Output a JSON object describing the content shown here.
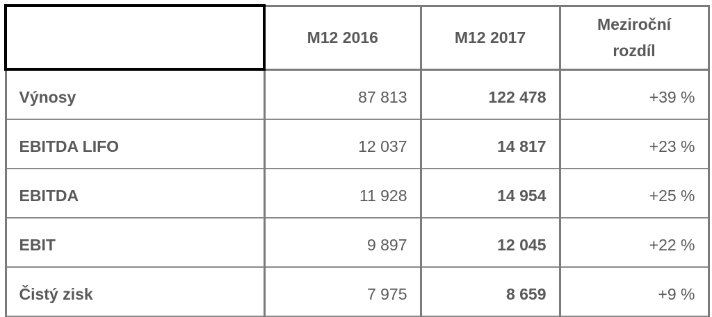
{
  "table": {
    "headers": [
      "",
      "M12 2016",
      "M12 2017",
      "Meziroční rozdíl"
    ],
    "header_diff_lines": [
      "Meziroční",
      "rozdíl"
    ],
    "rows": [
      {
        "label": "Výnosy",
        "m12_2016": "87 813",
        "m12_2017": "122 478",
        "diff": "+39 %"
      },
      {
        "label": "EBITDA LIFO",
        "m12_2016": "12 037",
        "m12_2017": "14 817",
        "diff": "+23 %"
      },
      {
        "label": "EBITDA",
        "m12_2016": "11 928",
        "m12_2017": "14 954",
        "diff": "+25 %"
      },
      {
        "label": "EBIT",
        "m12_2016": "9 897",
        "m12_2017": "12 045",
        "diff": "+22 %"
      },
      {
        "label": "Čistý zisk",
        "m12_2016": "7 975",
        "m12_2017": "8 659",
        "diff": "+9 %"
      }
    ]
  },
  "colors": {
    "text": "#595959",
    "border": "#7b7b7b",
    "corner_border": "#000000"
  }
}
